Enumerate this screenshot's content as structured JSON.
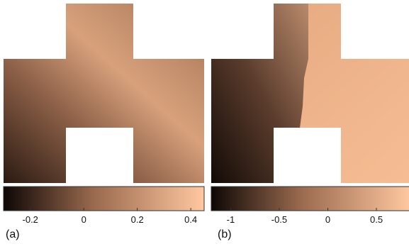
{
  "panels": [
    {
      "label": "(a)",
      "colorbar": {
        "min": -0.3,
        "max": 0.45,
        "ticks": [
          "-0.2",
          "0",
          "0.2",
          "0.4"
        ]
      }
    },
    {
      "label": "(b)",
      "colorbar": {
        "min": -1.2,
        "max": 0.85,
        "ticks": [
          "-1",
          "-0.5",
          "0",
          "0.5"
        ]
      }
    }
  ],
  "colormap": {
    "low": "#0d0705",
    "mid": "#9a6a4e",
    "high": "#ffc8a0"
  }
}
